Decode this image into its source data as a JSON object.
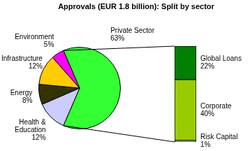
{
  "chart_data": [
    {
      "type": "pie",
      "title": "Approvals (EUR 1.8 billion): Split by sector",
      "categories": [
        "Private Sector",
        "Health & Education",
        "Energy",
        "Infrastructure",
        "Environment"
      ],
      "values": [
        63,
        12,
        8,
        12,
        5
      ],
      "value_labels": [
        "63%",
        "12%",
        "8%",
        "12%",
        "5%"
      ],
      "colors": [
        "#33ff33",
        "#ccccff",
        "#333300",
        "#ffcc00",
        "#ff00ff"
      ],
      "data_labels": true
    },
    {
      "type": "bar",
      "stacked": true,
      "categories": [
        null
      ],
      "series": [
        {
          "name": "Global Loans",
          "color": "#008000",
          "values": [
            22
          ],
          "value_labels": [
            "22%"
          ]
        },
        {
          "name": "Corporate",
          "color": "#99cc00",
          "values": [
            40
          ],
          "value_labels": [
            "40%"
          ]
        },
        {
          "name": "Risk Capital",
          "color": "#ccffcc",
          "values": [
            1
          ],
          "value_labels": [
            "1%"
          ]
        }
      ],
      "ylim": [
        0,
        63
      ],
      "data_labels": true,
      "tick_labels": false
    }
  ]
}
